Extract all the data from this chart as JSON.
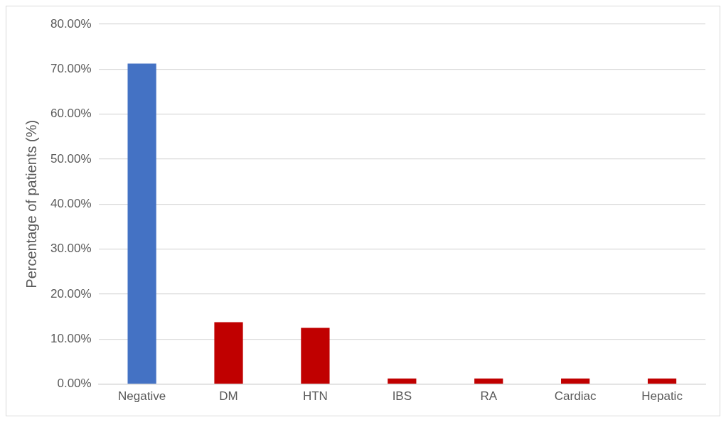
{
  "chart_data": {
    "type": "bar",
    "ylabel": "Percentage of patients (%)",
    "categories": [
      "Negative",
      "DM",
      "HTN",
      "IBS",
      "RA",
      "Cardiac",
      "Hepatic"
    ],
    "values": [
      71.25,
      13.75,
      12.5,
      1.25,
      1.25,
      1.25,
      1.25
    ],
    "colors": [
      "#4472c4",
      "#c00000",
      "#c00000",
      "#c00000",
      "#c00000",
      "#c00000",
      "#c00000"
    ],
    "ylim": [
      0,
      80
    ],
    "yticks": [
      {
        "value": 0,
        "label": "0.00%"
      },
      {
        "value": 10,
        "label": "10.00%"
      },
      {
        "value": 20,
        "label": "20.00%"
      },
      {
        "value": 30,
        "label": "30.00%"
      },
      {
        "value": 40,
        "label": "40.00%"
      },
      {
        "value": 50,
        "label": "50.00%"
      },
      {
        "value": 60,
        "label": "60.00%"
      },
      {
        "value": 70,
        "label": "70.00%"
      },
      {
        "value": 80,
        "label": "80.00%"
      }
    ],
    "grid": "y",
    "legend": false
  }
}
